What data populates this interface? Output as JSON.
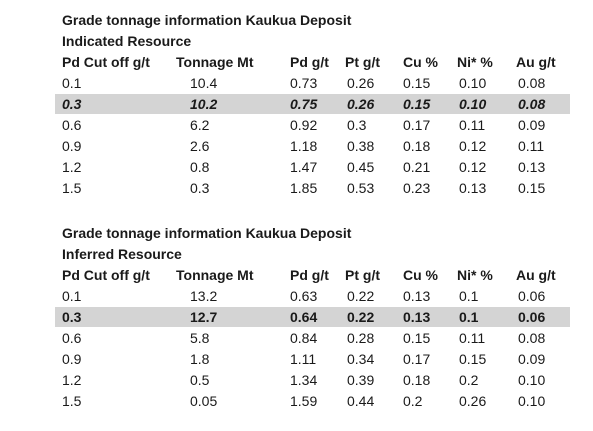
{
  "tables": [
    {
      "title": "Grade tonnage information Kaukua Deposit",
      "subtitle": "Indicated Resource",
      "columns": [
        "Pd Cut off g/t",
        "Tonnage Mt",
        "Pd g/t",
        "Pt g/t",
        "Cu %",
        "Ni* %",
        "Au g/t"
      ],
      "rows": [
        [
          "0.1",
          "10.4",
          "0.73",
          "0.26",
          "0.15",
          "0.10",
          "0.08"
        ],
        [
          "0.3",
          "10.2",
          "0.75",
          "0.26",
          "0.15",
          "0.10",
          "0.08"
        ],
        [
          "0.6",
          "6.2",
          "0.92",
          "0.3",
          "0.17",
          "0.11",
          "0.09"
        ],
        [
          "0.9",
          "2.6",
          "1.18",
          "0.38",
          "0.18",
          "0.12",
          "0.11"
        ],
        [
          "1.2",
          "0.8",
          "1.47",
          "0.45",
          "0.21",
          "0.12",
          "0.13"
        ],
        [
          "1.5",
          "0.3",
          "1.85",
          "0.53",
          "0.23",
          "0.13",
          "0.15"
        ]
      ]
    },
    {
      "title": "Grade tonnage information Kaukua Deposit",
      "subtitle": "Inferred Resource",
      "columns": [
        "Pd Cut off g/t",
        "Tonnage Mt",
        "Pd g/t",
        "Pt g/t",
        "Cu %",
        "Ni* %",
        "Au g/t"
      ],
      "rows": [
        [
          "0.1",
          "13.2",
          "0.63",
          "0.22",
          "0.13",
          "0.1",
          "0.06"
        ],
        [
          "0.3",
          "12.7",
          "0.64",
          "0.22",
          "0.13",
          "0.1",
          "0.06"
        ],
        [
          "0.6",
          "5.8",
          "0.84",
          "0.28",
          "0.15",
          "0.11",
          "0.08"
        ],
        [
          "0.9",
          "1.8",
          "1.11",
          "0.34",
          "0.17",
          "0.15",
          "0.09"
        ],
        [
          "1.2",
          "0.5",
          "1.34",
          "0.39",
          "0.18",
          "0.2",
          "0.10"
        ],
        [
          "1.5",
          "0.05",
          "1.59",
          "0.44",
          "0.2",
          "0.26",
          "0.10"
        ]
      ]
    }
  ]
}
